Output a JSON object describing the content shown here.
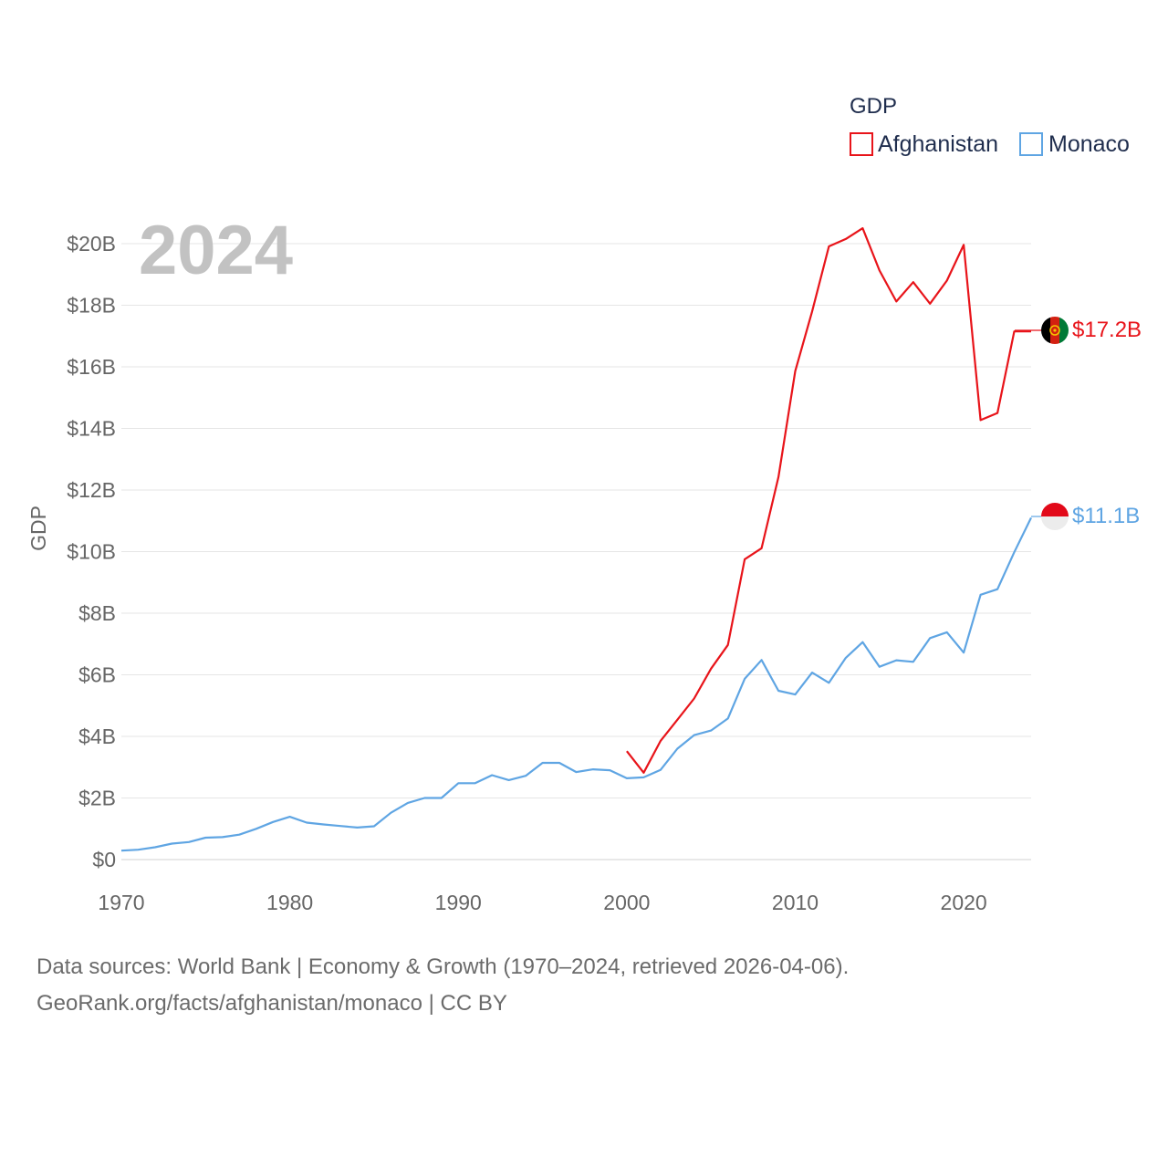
{
  "chart_data": {
    "type": "line",
    "ylabel": "GDP",
    "year_label": "2024",
    "legend": {
      "title": "GDP",
      "position": "top-right"
    },
    "xlim": [
      1970,
      2024
    ],
    "ylim": [
      0,
      20.5
    ],
    "x_ticks": [
      1970,
      1980,
      1990,
      2000,
      2010,
      2020
    ],
    "y_ticks": [
      {
        "value": 0,
        "label": "$0"
      },
      {
        "value": 2,
        "label": "$2B"
      },
      {
        "value": 4,
        "label": "$4B"
      },
      {
        "value": 6,
        "label": "$6B"
      },
      {
        "value": 8,
        "label": "$8B"
      },
      {
        "value": 10,
        "label": "$10B"
      },
      {
        "value": 12,
        "label": "$12B"
      },
      {
        "value": 14,
        "label": "$14B"
      },
      {
        "value": 16,
        "label": "$16B"
      },
      {
        "value": 18,
        "label": "$18B"
      },
      {
        "value": 20,
        "label": "$20B"
      }
    ],
    "series": [
      {
        "name": "Afghanistan",
        "color": "#e8141a",
        "end_label": "$17.2B",
        "flag": "afghanistan-flag",
        "x": [
          2000,
          2001,
          2002,
          2003,
          2004,
          2005,
          2006,
          2007,
          2008,
          2009,
          2010,
          2011,
          2012,
          2013,
          2014,
          2015,
          2016,
          2017,
          2018,
          2019,
          2020,
          2021,
          2022,
          2023,
          2024
        ],
        "values": [
          3.52,
          2.82,
          3.85,
          4.54,
          5.23,
          6.2,
          6.97,
          9.75,
          10.11,
          12.42,
          15.86,
          17.8,
          19.91,
          20.15,
          20.5,
          19.13,
          18.12,
          18.75,
          18.05,
          18.8,
          19.96,
          14.27,
          14.5,
          17.15,
          17.15
        ]
      },
      {
        "name": "Monaco",
        "color": "#5fa5e3",
        "end_label": "$11.1B",
        "flag": "monaco-flag",
        "x": [
          1970,
          1971,
          1972,
          1973,
          1974,
          1975,
          1976,
          1977,
          1978,
          1979,
          1980,
          1981,
          1982,
          1983,
          1984,
          1985,
          1986,
          1987,
          1988,
          1989,
          1990,
          1991,
          1992,
          1993,
          1994,
          1995,
          1996,
          1997,
          1998,
          1999,
          2000,
          2001,
          2002,
          2003,
          2004,
          2005,
          2006,
          2007,
          2008,
          2009,
          2010,
          2011,
          2012,
          2013,
          2014,
          2015,
          2016,
          2017,
          2018,
          2019,
          2020,
          2021,
          2022,
          2023,
          2024
        ],
        "values": [
          0.29,
          0.32,
          0.4,
          0.52,
          0.57,
          0.71,
          0.73,
          0.81,
          1.0,
          1.22,
          1.39,
          1.2,
          1.14,
          1.09,
          1.04,
          1.08,
          1.52,
          1.84,
          2.0,
          2.0,
          2.48,
          2.48,
          2.74,
          2.58,
          2.72,
          3.14,
          3.14,
          2.84,
          2.93,
          2.9,
          2.64,
          2.67,
          2.91,
          3.6,
          4.04,
          4.19,
          4.58,
          5.87,
          6.48,
          5.48,
          5.36,
          6.07,
          5.74,
          6.55,
          7.06,
          6.26,
          6.47,
          6.42,
          7.19,
          7.38,
          6.72,
          8.6,
          8.78,
          9.98,
          11.1
        ]
      }
    ]
  },
  "source": {
    "line1": "Data sources: World Bank | Economy & Growth (1970–2024, retrieved 2026-04-06).",
    "line2": "GeoRank.org/facts/afghanistan/monaco | CC BY"
  }
}
